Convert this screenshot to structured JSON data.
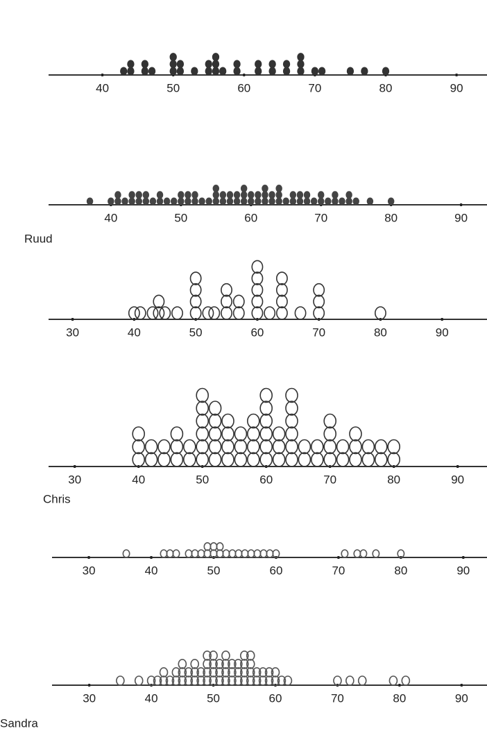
{
  "chart_data": [
    {
      "type": "dot",
      "color": "#333",
      "filled": true,
      "xlim": [
        32.4,
        94.3
      ],
      "xticks": [
        40,
        50,
        60,
        70,
        80,
        90
      ],
      "values": [
        43,
        44,
        44,
        46,
        46,
        47,
        50,
        50,
        50,
        51,
        51,
        53,
        55,
        55,
        56,
        56,
        56,
        57,
        59,
        59,
        62,
        62,
        64,
        64,
        66,
        66,
        68,
        68,
        68,
        70,
        71,
        75,
        77,
        80
      ]
    },
    {
      "type": "dot",
      "color": "#444",
      "filled": true,
      "label": "Ruud",
      "xlim": [
        31.1,
        93.7
      ],
      "xticks": [
        40,
        50,
        60,
        70,
        80,
        90
      ],
      "values": [
        37,
        40,
        41,
        41,
        42,
        43,
        43,
        44,
        44,
        45,
        45,
        46,
        47,
        47,
        48,
        49,
        50,
        50,
        51,
        51,
        52,
        52,
        53,
        54,
        55,
        55,
        55,
        56,
        56,
        57,
        57,
        58,
        58,
        59,
        59,
        59,
        60,
        60,
        61,
        61,
        62,
        62,
        62,
        63,
        63,
        64,
        64,
        64,
        65,
        66,
        66,
        67,
        67,
        68,
        68,
        69,
        70,
        70,
        71,
        72,
        72,
        73,
        74,
        74,
        75,
        77,
        80
      ]
    },
    {
      "type": "dot",
      "color": "#333",
      "filled": false,
      "xlim": [
        26.1,
        97.3
      ],
      "xticks": [
        30,
        40,
        50,
        60,
        70,
        80,
        90
      ],
      "values": [
        40,
        41,
        43,
        44,
        44,
        45,
        47,
        50,
        50,
        50,
        50,
        52,
        53,
        55,
        55,
        55,
        57,
        57,
        60,
        60,
        60,
        60,
        60,
        62,
        64,
        64,
        64,
        64,
        67,
        70,
        70,
        70,
        80
      ]
    },
    {
      "type": "dot",
      "color": "#333",
      "filled": false,
      "label": "Chris",
      "xlim": [
        25.9,
        94.6
      ],
      "xticks": [
        30,
        40,
        50,
        60,
        70,
        80,
        90
      ],
      "values": [
        40,
        40,
        40,
        42,
        42,
        44,
        44,
        46,
        46,
        46,
        48,
        48,
        50,
        50,
        50,
        50,
        50,
        50,
        52,
        52,
        52,
        52,
        52,
        54,
        54,
        54,
        54,
        56,
        56,
        56,
        58,
        58,
        58,
        58,
        60,
        60,
        60,
        60,
        60,
        60,
        62,
        62,
        62,
        64,
        64,
        64,
        64,
        64,
        64,
        66,
        66,
        68,
        68,
        70,
        70,
        70,
        70,
        72,
        72,
        74,
        74,
        74,
        76,
        76,
        78,
        78,
        80,
        80
      ]
    },
    {
      "type": "dot",
      "color": "#555",
      "filled": false,
      "xlim": [
        24.1,
        93.8
      ],
      "xticks": [
        30,
        40,
        50,
        60,
        70,
        80,
        90
      ],
      "values": [
        36,
        42,
        43,
        44,
        46,
        47,
        48,
        49,
        49,
        50,
        50,
        51,
        51,
        52,
        53,
        54,
        55,
        56,
        57,
        58,
        59,
        60,
        71,
        73,
        74,
        76,
        80
      ]
    },
    {
      "type": "dot",
      "color": "#555",
      "filled": false,
      "label": "Sandra",
      "xlim": [
        24.0,
        94.1
      ],
      "xticks": [
        30,
        40,
        50,
        60,
        70,
        80,
        90
      ],
      "values": [
        35,
        38,
        40,
        41,
        42,
        42,
        43,
        44,
        44,
        45,
        45,
        45,
        46,
        46,
        47,
        47,
        47,
        48,
        48,
        49,
        49,
        49,
        49,
        50,
        50,
        50,
        50,
        51,
        51,
        51,
        52,
        52,
        52,
        52,
        53,
        53,
        53,
        54,
        54,
        54,
        55,
        55,
        55,
        55,
        56,
        56,
        56,
        56,
        57,
        57,
        58,
        58,
        59,
        59,
        60,
        60,
        61,
        62,
        70,
        72,
        74,
        79,
        81
      ]
    }
  ]
}
